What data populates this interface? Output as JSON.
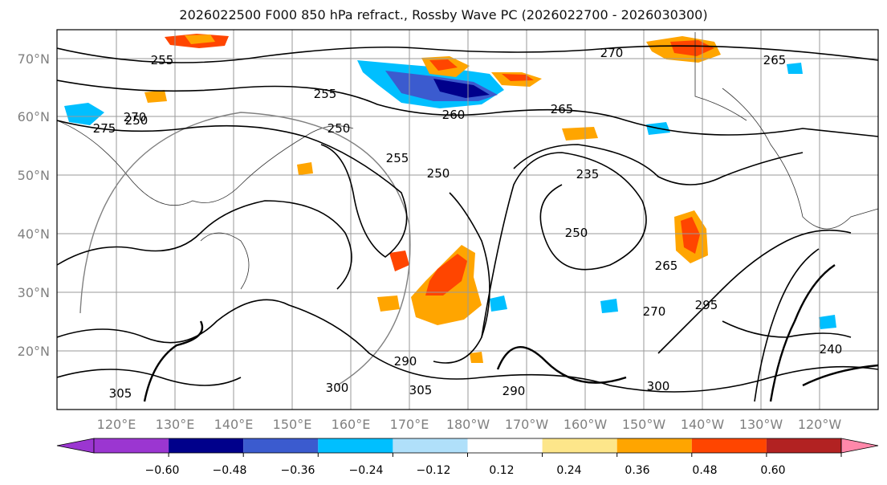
{
  "title": "2026022500 F000 850 hPa refract., Rossby Wave PC (2026022700 - 2026030300)",
  "map": {
    "lat_labels": [
      "70°N",
      "60°N",
      "50°N",
      "40°N",
      "30°N",
      "20°N"
    ],
    "lon_labels": [
      "120°E",
      "130°E",
      "140°E",
      "150°E",
      "160°E",
      "170°E",
      "180°W",
      "170°W",
      "160°W",
      "150°W",
      "140°W",
      "130°W",
      "120°W"
    ],
    "contour_labels": [
      "255",
      "270",
      "265",
      "275",
      "250",
      "255",
      "255",
      "250",
      "260",
      "235",
      "250",
      "270",
      "265",
      "250",
      "265",
      "270",
      "295",
      "240",
      "290",
      "305",
      "300",
      "305",
      "300",
      "290"
    ],
    "colors": {
      "frame": "#000000",
      "grid": "#9a9a9a",
      "axis_labels": "#808080",
      "contour": "#000000"
    }
  },
  "colorbar": {
    "tick_labels": [
      "−0.60",
      "−0.48",
      "−0.36",
      "−0.24",
      "−0.12",
      "0.12",
      "0.24",
      "0.36",
      "0.48",
      "0.60"
    ],
    "colors": [
      "#9b36d1",
      "#00008b",
      "#3b5bcf",
      "#00bfff",
      "#b0e0fa",
      "#ffffff",
      "#fde68a",
      "#ffa500",
      "#ff4500",
      "#b22222",
      "#ff88aa"
    ]
  }
}
